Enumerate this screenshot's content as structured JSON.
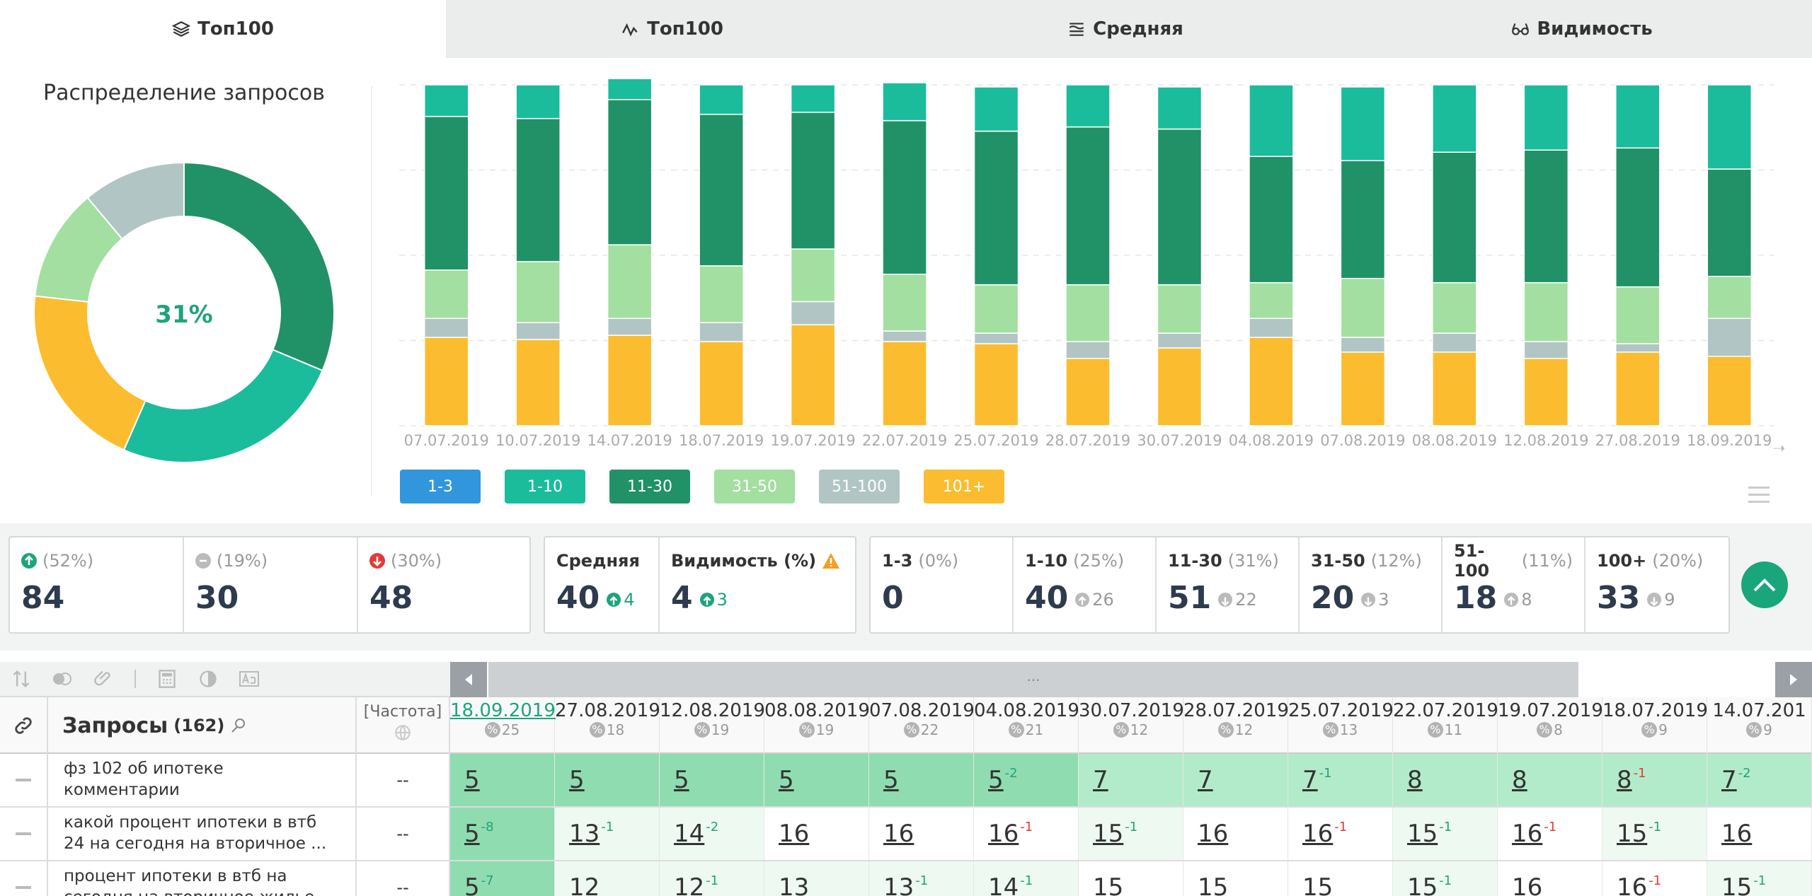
{
  "tabs": [
    {
      "label": "Топ100",
      "icon": "layers-icon",
      "active": true
    },
    {
      "label": "Топ100",
      "icon": "line-chart-icon",
      "active": false
    },
    {
      "label": "Средняя",
      "icon": "average-icon",
      "active": false
    },
    {
      "label": "Видимость",
      "icon": "glasses-icon",
      "active": false
    }
  ],
  "donut": {
    "title": "Распределение запросов",
    "center": "31%",
    "slices": [
      {
        "name": "11-30",
        "value": 31,
        "color": "#219167"
      },
      {
        "name": "1-10",
        "value": 25,
        "color": "#1bbc9b"
      },
      {
        "name": "101+",
        "value": 20,
        "color": "#fbbd2f"
      },
      {
        "name": "31-50",
        "value": 12,
        "color": "#a3dfa0"
      },
      {
        "name": "51-100",
        "value": 11,
        "color": "#b1c5c4"
      }
    ]
  },
  "chart_data": {
    "type": "bar",
    "stacked": true,
    "categories": [
      "07.07.2019",
      "10.07.2019",
      "14.07.2019",
      "18.07.2019",
      "19.07.2019",
      "22.07.2019",
      "25.07.2019",
      "28.07.2019",
      "30.07.2019",
      "04.08.2019",
      "07.08.2019",
      "08.08.2019",
      "12.08.2019",
      "27.08.2019",
      "18.09.2019"
    ],
    "ylim": [
      0,
      162
    ],
    "grid": true,
    "series": [
      {
        "name": "101+",
        "color": "#fbbd2f",
        "values": [
          42,
          41,
          43,
          40,
          48,
          40,
          39,
          32,
          37,
          42,
          35,
          35,
          32,
          35,
          33
        ]
      },
      {
        "name": "51-100",
        "color": "#b1c5c4",
        "values": [
          9,
          8,
          8,
          9,
          11,
          5,
          5,
          8,
          7,
          9,
          7,
          9,
          8,
          4,
          18
        ]
      },
      {
        "name": "31-50",
        "color": "#a3dfa0",
        "values": [
          23,
          29,
          35,
          27,
          25,
          27,
          23,
          27,
          23,
          17,
          28,
          24,
          28,
          27,
          20
        ]
      },
      {
        "name": "11-30",
        "color": "#219167",
        "values": [
          73,
          68,
          69,
          72,
          65,
          73,
          73,
          75,
          74,
          60,
          56,
          62,
          63,
          66,
          51
        ]
      },
      {
        "name": "1-10",
        "color": "#1bbc9b",
        "values": [
          15,
          16,
          15,
          14,
          13,
          18,
          21,
          20,
          20,
          34,
          35,
          32,
          31,
          30,
          40
        ]
      },
      {
        "name": "1-3",
        "color": "#3296dc",
        "values": [
          0,
          0,
          0,
          0,
          0,
          0,
          0,
          0,
          0,
          0,
          0,
          0,
          0,
          0,
          0
        ]
      }
    ]
  },
  "legend": [
    {
      "label": "1-3",
      "color": "#3296dc"
    },
    {
      "label": "1-10",
      "color": "#1bbc9b"
    },
    {
      "label": "11-30",
      "color": "#219167"
    },
    {
      "label": "31-50",
      "color": "#a3dfa0"
    },
    {
      "label": "51-100",
      "color": "#b1c5c4"
    },
    {
      "label": "101+",
      "color": "#fbbd2f"
    }
  ],
  "stats": {
    "dynamics": [
      {
        "pct": "(52%)",
        "value": "84",
        "icon": "arrow-up-circle-icon"
      },
      {
        "pct": "(19%)",
        "value": "30",
        "icon": "minus-circle-icon"
      },
      {
        "pct": "(30%)",
        "value": "48",
        "icon": "arrow-down-circle-icon"
      }
    ],
    "avg": {
      "label": "Средняя",
      "value": "40",
      "delta": "4"
    },
    "vis": {
      "label": "Видимость (%)",
      "value": "4",
      "delta": "3"
    },
    "ranges": [
      {
        "label": "1-3",
        "pct": "(0%)",
        "value": "0",
        "delta": "",
        "dir": ""
      },
      {
        "label": "1-10",
        "pct": "(25%)",
        "value": "40",
        "delta": "26",
        "dir": "up"
      },
      {
        "label": "11-30",
        "pct": "(31%)",
        "value": "51",
        "delta": "22",
        "dir": "down"
      },
      {
        "label": "31-50",
        "pct": "(12%)",
        "value": "20",
        "delta": "3",
        "dir": "down"
      },
      {
        "label": "51-100",
        "pct": "(11%)",
        "value": "18",
        "delta": "8",
        "dir": "up"
      },
      {
        "label": "100+",
        "pct": "(20%)",
        "value": "33",
        "delta": "9",
        "dir": "down"
      }
    ]
  },
  "table": {
    "scroll_label": "...",
    "queries_label": "Запросы",
    "queries_count": "(162)",
    "freq_label": "[Частота]",
    "dates": [
      {
        "d": "18.09.2019",
        "c": "25",
        "link": true
      },
      {
        "d": "27.08.2019",
        "c": "18"
      },
      {
        "d": "12.08.2019",
        "c": "19"
      },
      {
        "d": "08.08.2019",
        "c": "19"
      },
      {
        "d": "07.08.2019",
        "c": "22"
      },
      {
        "d": "04.08.2019",
        "c": "21"
      },
      {
        "d": "30.07.2019",
        "c": "12"
      },
      {
        "d": "28.07.2019",
        "c": "12"
      },
      {
        "d": "25.07.2019",
        "c": "13"
      },
      {
        "d": "22.07.2019",
        "c": "11"
      },
      {
        "d": "19.07.2019",
        "c": "8"
      },
      {
        "d": "18.07.2019",
        "c": "9"
      },
      {
        "d": "14.07.201",
        "c": "9"
      }
    ],
    "rows": [
      {
        "q": "фз 102 об ипотеке комментарии",
        "f": "--",
        "cells": [
          {
            "v": "5",
            "bg": "#8fdcb0"
          },
          {
            "v": "5",
            "bg": "#8fdcb0"
          },
          {
            "v": "5",
            "bg": "#8fdcb0"
          },
          {
            "v": "5",
            "bg": "#8fdcb0"
          },
          {
            "v": "5",
            "bg": "#8fdcb0"
          },
          {
            "v": "5",
            "s": "-2",
            "sc": "g",
            "bg": "#8fdcb0"
          },
          {
            "v": "7",
            "bg": "#b2ebc9"
          },
          {
            "v": "7",
            "bg": "#b2ebc9"
          },
          {
            "v": "7",
            "s": "-1",
            "sc": "g",
            "bg": "#b2ebc9"
          },
          {
            "v": "8",
            "bg": "#b2ebc9"
          },
          {
            "v": "8",
            "bg": "#b2ebc9"
          },
          {
            "v": "8",
            "s": "-1",
            "sc": "r",
            "bg": "#b2ebc9"
          },
          {
            "v": "7",
            "s": "-2",
            "sc": "g",
            "bg": "#b2ebc9"
          }
        ]
      },
      {
        "q": "какой процент ипотеки в втб 24 на сегодня на вторичное ...",
        "f": "--",
        "cells": [
          {
            "v": "5",
            "s": "-8",
            "sc": "g",
            "bg": "#8fdcb0"
          },
          {
            "v": "13",
            "s": "-1",
            "sc": "g",
            "bg": "#eef9f2"
          },
          {
            "v": "14",
            "s": "-2",
            "sc": "g",
            "bg": "#eef9f2"
          },
          {
            "v": "16",
            "bg": "#fff"
          },
          {
            "v": "16",
            "bg": "#fff"
          },
          {
            "v": "16",
            "s": "-1",
            "sc": "r",
            "bg": "#fff"
          },
          {
            "v": "15",
            "s": "-1",
            "sc": "g",
            "bg": "#eef9f2"
          },
          {
            "v": "16",
            "bg": "#fff"
          },
          {
            "v": "16",
            "s": "-1",
            "sc": "r",
            "bg": "#fff"
          },
          {
            "v": "15",
            "s": "-1",
            "sc": "g",
            "bg": "#eef9f2"
          },
          {
            "v": "16",
            "s": "-1",
            "sc": "r",
            "bg": "#fff"
          },
          {
            "v": "15",
            "s": "-1",
            "sc": "g",
            "bg": "#eef9f2"
          },
          {
            "v": "16",
            "bg": "#fff"
          }
        ]
      },
      {
        "q": "процент ипотеки в втб на сегодня на вторичное жилье",
        "f": "--",
        "cells": [
          {
            "v": "5",
            "s": "-7",
            "sc": "g",
            "bg": "#8fdcb0"
          },
          {
            "v": "12",
            "bg": "#eef9f2"
          },
          {
            "v": "12",
            "s": "-1",
            "sc": "g",
            "bg": "#eef9f2"
          },
          {
            "v": "13",
            "bg": "#eef9f2"
          },
          {
            "v": "13",
            "s": "-1",
            "sc": "g",
            "bg": "#eef9f2"
          },
          {
            "v": "14",
            "s": "-1",
            "sc": "g",
            "bg": "#eef9f2"
          },
          {
            "v": "15",
            "bg": "#fff"
          },
          {
            "v": "15",
            "bg": "#fff"
          },
          {
            "v": "15",
            "bg": "#fff"
          },
          {
            "v": "15",
            "s": "-1",
            "sc": "g",
            "bg": "#eef9f2"
          },
          {
            "v": "16",
            "bg": "#fff"
          },
          {
            "v": "16",
            "s": "-1",
            "sc": "r",
            "bg": "#fff"
          },
          {
            "v": "15",
            "s": "-1",
            "sc": "g",
            "bg": "#eef9f2"
          }
        ]
      }
    ]
  }
}
